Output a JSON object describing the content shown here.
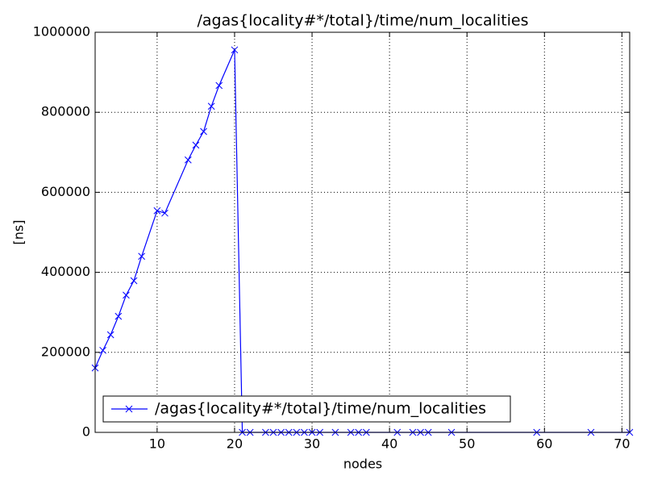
{
  "chart_data": {
    "type": "line",
    "title": "/agas{locality#*/total}/time/num_localities",
    "xlabel": "nodes",
    "ylabel": "[ns]",
    "x": [
      2,
      3,
      4,
      5,
      6,
      7,
      8,
      10,
      11,
      14,
      15,
      16,
      17,
      18,
      20,
      21,
      22,
      24,
      25,
      26,
      27,
      28,
      29,
      30,
      31,
      33,
      35,
      36,
      37,
      41,
      43,
      44,
      45,
      48,
      59,
      66,
      71
    ],
    "series": [
      {
        "name": "/agas{locality#*/total}/time/num_localities",
        "color": "#0000ff",
        "values": [
          161000,
          205000,
          244000,
          290000,
          343000,
          379000,
          440000,
          554000,
          548000,
          681000,
          718000,
          752000,
          815000,
          867000,
          956000,
          0,
          0,
          0,
          0,
          0,
          0,
          0,
          0,
          0,
          0,
          0,
          0,
          0,
          0,
          0,
          0,
          0,
          0,
          0,
          0,
          0,
          0
        ]
      }
    ],
    "xlim": [
      2,
      71
    ],
    "xticks": [
      10,
      20,
      30,
      40,
      50,
      60,
      70
    ],
    "ylim": [
      0,
      1000000
    ],
    "yticks": [
      0,
      200000,
      400000,
      600000,
      800000,
      1000000
    ],
    "grid": true,
    "legend_loc": "lower left"
  }
}
